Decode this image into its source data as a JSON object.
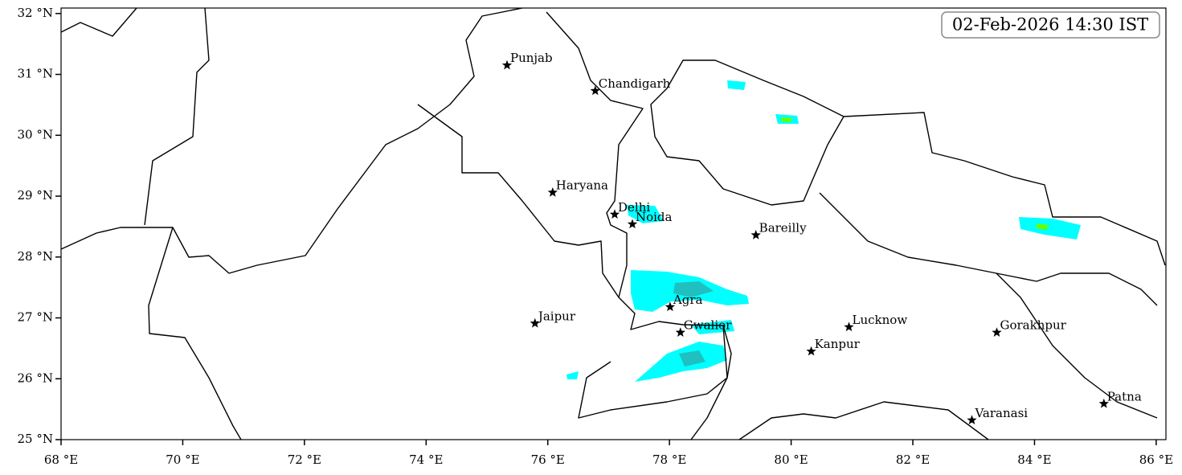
{
  "chart_data": {
    "type": "map",
    "annotation": "02-Feb-2026 14:30 IST",
    "xlim": [
      68,
      86.16
    ],
    "ylim": [
      25,
      32.09
    ],
    "xticks": [
      {
        "value": 68,
        "label": "68 °E"
      },
      {
        "value": 70,
        "label": "70 °E"
      },
      {
        "value": 72,
        "label": "72 °E"
      },
      {
        "value": 74,
        "label": "74 °E"
      },
      {
        "value": 76,
        "label": "76 °E"
      },
      {
        "value": 78,
        "label": "78 °E"
      },
      {
        "value": 80,
        "label": "80 °E"
      },
      {
        "value": 82,
        "label": "82 °E"
      },
      {
        "value": 84,
        "label": "84 °E"
      },
      {
        "value": 86,
        "label": "86 °E"
      }
    ],
    "yticks": [
      {
        "value": 25,
        "label": "25 °N"
      },
      {
        "value": 26,
        "label": "26 °N"
      },
      {
        "value": 27,
        "label": "27 °N"
      },
      {
        "value": 28,
        "label": "28 °N"
      },
      {
        "value": 29,
        "label": "29 °N"
      },
      {
        "value": 30,
        "label": "30 °N"
      },
      {
        "value": 31,
        "label": "31 °N"
      },
      {
        "value": 32,
        "label": "32 °N"
      }
    ],
    "cities": {
      "names": [
        "Punjab",
        "Chandigarh",
        "Haryana",
        "Delhi",
        "Noida",
        "Bareilly",
        "Agra",
        "Jaipur",
        "Gwalior",
        "Lucknow",
        "Kanpur",
        "Gorakhpur",
        "Varanasi",
        "Patna"
      ],
      "lon": [
        75.33,
        76.78,
        76.08,
        77.1,
        77.39,
        79.42,
        78.01,
        75.79,
        78.18,
        80.95,
        80.33,
        83.38,
        82.97,
        85.14
      ],
      "lat": [
        31.15,
        30.73,
        29.06,
        28.7,
        28.54,
        28.36,
        27.18,
        26.91,
        26.76,
        26.85,
        26.45,
        26.76,
        25.32,
        25.59
      ],
      "color": "#000000"
    }
  }
}
